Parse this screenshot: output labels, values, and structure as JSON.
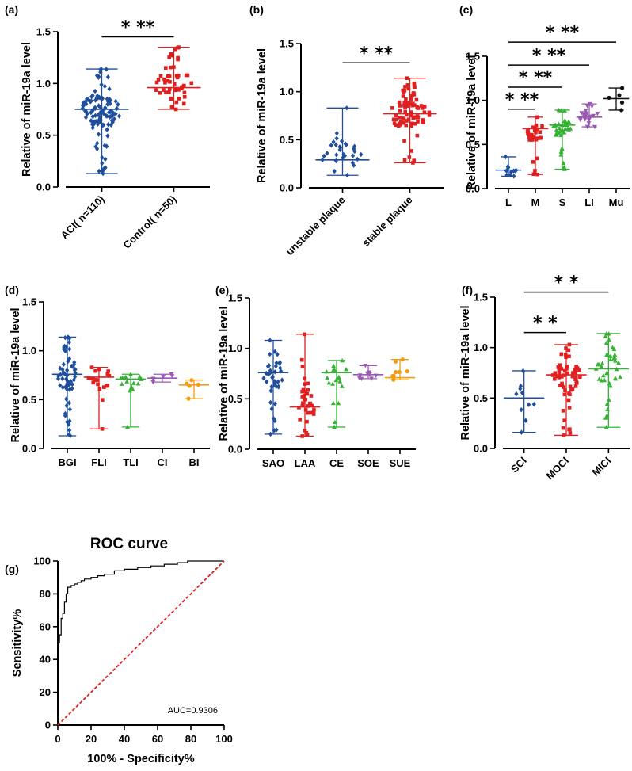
{
  "figure": {
    "colors": {
      "blue": "#1f4e9c",
      "red": "#e02020",
      "green": "#33b233",
      "purple": "#9b59b6",
      "orange": "#f39c12",
      "black": "#111111"
    }
  },
  "chart_data": [
    {
      "id": "a",
      "panel_label": "(a)",
      "type": "scatter",
      "title": "",
      "ylabel": "Relative of  miR-19a level",
      "ylim": [
        0,
        1.5
      ],
      "yticks": [
        "0.0",
        "0.5",
        "1.0",
        "1.5"
      ],
      "ytick_values": [
        0,
        0.5,
        1.0,
        1.5
      ],
      "xlabel_rotate": true,
      "categories": [
        "ACI( n=110)",
        "Control( n=50)"
      ],
      "groups": [
        {
          "name": "ACI( n=110)",
          "color": "#1f4e9c",
          "marker": "diamond",
          "median": 0.75,
          "min": 0.13,
          "max": 1.14,
          "n": 110
        },
        {
          "name": "Control( n=50)",
          "color": "#e02020",
          "marker": "square",
          "median": 0.96,
          "min": 0.75,
          "max": 1.35,
          "n": 50
        }
      ],
      "significance": [
        {
          "text": "* **",
          "from": 0,
          "to": 1,
          "y": 1.45
        }
      ]
    },
    {
      "id": "b",
      "panel_label": "(b)",
      "type": "scatter",
      "title": "",
      "ylabel": "Relative of  miR-19a level",
      "ylim": [
        0,
        1.5
      ],
      "yticks": [
        "0.0",
        "0.5",
        "1.0",
        "1.5"
      ],
      "ytick_values": [
        0,
        0.5,
        1.0,
        1.5
      ],
      "xlabel_rotate": true,
      "categories": [
        "unstable plaque",
        "stable plaque"
      ],
      "groups": [
        {
          "name": "unstable plaque",
          "color": "#1f4e9c",
          "marker": "diamond",
          "median": 0.29,
          "min": 0.13,
          "max": 0.83,
          "n": 30
        },
        {
          "name": "stable plaque",
          "color": "#e02020",
          "marker": "square",
          "median": 0.77,
          "min": 0.26,
          "max": 1.14,
          "n": 80
        }
      ],
      "significance": [
        {
          "text": "* **",
          "from": 0,
          "to": 1,
          "y": 1.3
        }
      ]
    },
    {
      "id": "c",
      "panel_label": "(c)",
      "type": "scatter",
      "title": "",
      "ylabel": "Relative of  miR-19a level",
      "ylim": [
        0,
        1.5
      ],
      "yticks": [
        "0.0",
        "0.5",
        "1.0",
        "1.5"
      ],
      "ytick_values": [
        0,
        0.5,
        1.0,
        1.5
      ],
      "xlabel_rotate": false,
      "categories": [
        "L",
        "M",
        "S",
        "LI",
        "Mu"
      ],
      "groups": [
        {
          "name": "L",
          "color": "#1f4e9c",
          "marker": "diamond",
          "median": 0.21,
          "min": 0.14,
          "max": 0.36,
          "n": 12
        },
        {
          "name": "M",
          "color": "#e02020",
          "marker": "square",
          "median": 0.68,
          "min": 0.16,
          "max": 0.81,
          "n": 30
        },
        {
          "name": "S",
          "color": "#33b233",
          "marker": "triangle",
          "median": 0.72,
          "min": 0.22,
          "max": 0.89,
          "n": 40
        },
        {
          "name": "LI",
          "color": "#9b59b6",
          "marker": "triangle-down",
          "median": 0.81,
          "min": 0.7,
          "max": 0.96,
          "n": 22
        },
        {
          "name": "Mu",
          "color": "#111111",
          "marker": "circle",
          "median": 1.02,
          "min": 0.89,
          "max": 1.14,
          "n": 5
        }
      ],
      "significance": [
        {
          "text": "* **",
          "from": 0,
          "to": 1,
          "y": 0.9
        },
        {
          "text": "* **",
          "from": 0,
          "to": 2,
          "y": 1.15
        },
        {
          "text": "* **",
          "from": 0,
          "to": 3,
          "y": 1.4
        },
        {
          "text": "* **",
          "from": 0,
          "to": 4,
          "y": 1.66
        }
      ]
    },
    {
      "id": "d",
      "panel_label": "(d)",
      "type": "scatter",
      "title": "",
      "ylabel": "Relative of  miR-19a level",
      "ylim": [
        0,
        1.5
      ],
      "yticks": [
        "0.0",
        "0.5",
        "1.0",
        "1.5"
      ],
      "ytick_values": [
        0,
        0.5,
        1.0,
        1.5
      ],
      "xlabel_rotate": false,
      "categories": [
        "BGI",
        "FLI",
        "TLI",
        "CI",
        "BI"
      ],
      "groups": [
        {
          "name": "BGI",
          "color": "#1f4e9c",
          "marker": "diamond",
          "median": 0.76,
          "min": 0.13,
          "max": 1.14,
          "n": 60
        },
        {
          "name": "FLI",
          "color": "#e02020",
          "marker": "square",
          "median": 0.73,
          "min": 0.2,
          "max": 0.83,
          "n": 20
        },
        {
          "name": "TLI",
          "color": "#33b233",
          "marker": "triangle",
          "median": 0.71,
          "min": 0.22,
          "max": 0.76,
          "n": 14
        },
        {
          "name": "CI",
          "color": "#9b59b6",
          "marker": "triangle-down",
          "median": 0.72,
          "min": 0.68,
          "max": 0.76,
          "n": 6
        },
        {
          "name": "BI",
          "color": "#f39c12",
          "marker": "circle",
          "median": 0.65,
          "min": 0.51,
          "max": 0.7,
          "n": 5
        }
      ],
      "significance": []
    },
    {
      "id": "e",
      "panel_label": "(e)",
      "type": "scatter",
      "title": "",
      "ylabel": "Relative of  miR-19a level",
      "ylim": [
        0,
        1.5
      ],
      "yticks": [
        "0.0",
        "0.5",
        "1.0",
        "1.5"
      ],
      "ytick_values": [
        0,
        0.5,
        1.0,
        1.5
      ],
      "xlabel_rotate": false,
      "categories": [
        "SAO",
        "LAA",
        "CE",
        "SOE",
        "SUE"
      ],
      "groups": [
        {
          "name": "SAO",
          "color": "#1f4e9c",
          "marker": "diamond",
          "median": 0.76,
          "min": 0.15,
          "max": 1.08,
          "n": 40
        },
        {
          "name": "LAA",
          "color": "#e02020",
          "marker": "square",
          "median": 0.42,
          "min": 0.13,
          "max": 1.14,
          "n": 35
        },
        {
          "name": "CE",
          "color": "#33b233",
          "marker": "triangle",
          "median": 0.76,
          "min": 0.22,
          "max": 0.88,
          "n": 18
        },
        {
          "name": "SOE",
          "color": "#9b59b6",
          "marker": "triangle-down",
          "median": 0.74,
          "min": 0.7,
          "max": 0.83,
          "n": 9
        },
        {
          "name": "SUE",
          "color": "#f39c12",
          "marker": "circle",
          "median": 0.71,
          "min": 0.69,
          "max": 0.89,
          "n": 8
        }
      ],
      "significance": []
    },
    {
      "id": "f",
      "panel_label": "(f)",
      "type": "scatter",
      "title": "",
      "ylabel": "Relative of  miR-19a level",
      "ylim": [
        0,
        1.5
      ],
      "yticks": [
        "0.0",
        "0.5",
        "1.0",
        "1.5"
      ],
      "ytick_values": [
        0,
        0.5,
        1.0,
        1.5
      ],
      "xlabel_rotate": true,
      "categories": [
        "SCI",
        "MOCI",
        "MICI"
      ],
      "groups": [
        {
          "name": "SCI",
          "color": "#1f4e9c",
          "marker": "diamond",
          "median": 0.5,
          "min": 0.16,
          "max": 0.77,
          "n": 10
        },
        {
          "name": "MOCI",
          "color": "#e02020",
          "marker": "square",
          "median": 0.73,
          "min": 0.13,
          "max": 1.03,
          "n": 60
        },
        {
          "name": "MICI",
          "color": "#33b233",
          "marker": "triangle",
          "median": 0.79,
          "min": 0.21,
          "max": 1.14,
          "n": 40
        }
      ],
      "significance": [
        {
          "text": "* *",
          "from": 0,
          "to": 1,
          "y": 1.15
        },
        {
          "text": "* *",
          "from": 0,
          "to": 2,
          "y": 1.55
        }
      ]
    },
    {
      "id": "g",
      "panel_label": "(g)",
      "type": "line",
      "title": "ROC curve",
      "xlabel": "100% - Specificity%",
      "ylabel": "Sensitivity%",
      "xlim": [
        0,
        100
      ],
      "ylim": [
        0,
        100
      ],
      "xticks": [
        "0",
        "20",
        "40",
        "60",
        "80",
        "100"
      ],
      "xtick_values": [
        0,
        20,
        40,
        60,
        80,
        100
      ],
      "yticks": [
        "0",
        "20",
        "40",
        "60",
        "80",
        "100"
      ],
      "ytick_values": [
        0,
        20,
        40,
        60,
        80,
        100
      ],
      "annotation": "AUC=0.9306",
      "series": [
        {
          "name": "ROC",
          "color": "#000000",
          "style": "step",
          "x": [
            0,
            0,
            1,
            1,
            2,
            2,
            3,
            3,
            4,
            4,
            5,
            5,
            6,
            6,
            8,
            8,
            10,
            10,
            12,
            12,
            14,
            14,
            16,
            16,
            20,
            20,
            24,
            24,
            28,
            28,
            34,
            34,
            40,
            40,
            48,
            48,
            56,
            56,
            64,
            64,
            72,
            72,
            78,
            78,
            100
          ],
          "y": [
            0,
            50,
            50,
            55,
            55,
            65,
            65,
            68,
            68,
            75,
            75,
            80,
            80,
            84,
            84,
            85,
            85,
            86,
            86,
            87,
            87,
            88,
            88,
            89,
            89,
            90,
            90,
            91,
            91,
            92,
            92,
            94,
            94,
            95,
            95,
            96,
            96,
            97,
            97,
            98,
            98,
            99,
            99,
            100,
            100
          ]
        },
        {
          "name": "Reference",
          "color": "#e02020",
          "style": "dashed",
          "x": [
            0,
            100
          ],
          "y": [
            0,
            100
          ]
        }
      ]
    }
  ]
}
